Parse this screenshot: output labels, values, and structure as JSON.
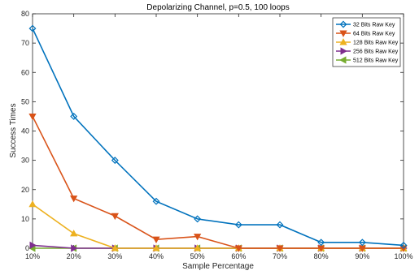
{
  "chart_data": {
    "type": "line",
    "title": "Depolarizing Channel, p=0.5, 100 loops",
    "xlabel": "Sample Percentage",
    "ylabel": "Success Times",
    "categories": [
      "10%",
      "20%",
      "30%",
      "40%",
      "50%",
      "60%",
      "70%",
      "80%",
      "90%",
      "100%"
    ],
    "ylim": [
      0,
      80
    ],
    "yticks": [
      0,
      10,
      20,
      30,
      40,
      50,
      60,
      70,
      80
    ],
    "grid": false,
    "legend_position": "top-right",
    "series": [
      {
        "name": "32 Bits Raw Key",
        "color": "#0072BD",
        "marker": "diamond",
        "values": [
          75,
          45,
          30,
          16,
          10,
          8,
          8,
          2,
          2,
          1
        ]
      },
      {
        "name": "64 Bits Raw Key",
        "color": "#D95319",
        "marker": "triangle-down",
        "values": [
          45,
          17,
          11,
          3,
          4,
          0,
          0,
          0,
          0,
          0
        ]
      },
      {
        "name": "128 Bits Raw Key",
        "color": "#EDB120",
        "marker": "triangle-up",
        "values": [
          15,
          5,
          0,
          0,
          0,
          0,
          0,
          0,
          0,
          0
        ]
      },
      {
        "name": "256 Bits Raw Key",
        "color": "#7E2F8E",
        "marker": "triangle-right",
        "values": [
          1,
          0,
          0,
          0,
          0,
          0,
          0,
          0,
          0,
          0
        ]
      },
      {
        "name": "512 Bits Raw Key",
        "color": "#77AC30",
        "marker": "triangle-left",
        "values": [
          0,
          0,
          0,
          0,
          0,
          0,
          0,
          0,
          0,
          0
        ]
      }
    ]
  }
}
